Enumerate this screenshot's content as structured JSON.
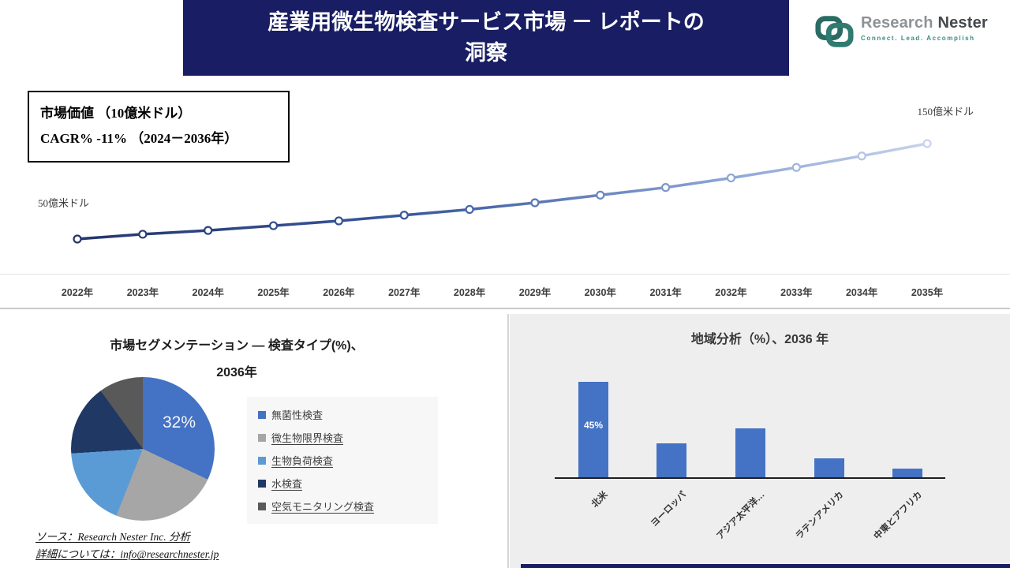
{
  "banner": {
    "line1": "産業用微生物検査サービス市場 － レポートの",
    "line2": "洞察"
  },
  "logo": {
    "name_part1": "Research",
    "name_part2": "Nester",
    "tagline": "Connect. Lead. Accomplish"
  },
  "chart_data": [
    {
      "type": "line",
      "title": "市場価値 （10億米ドル）",
      "subtitle": "CAGR% -11% （2024－2036年）",
      "min_annotation": "50億米ドル",
      "max_annotation": "150億米ドル",
      "x": [
        "2022年",
        "2023年",
        "2024年",
        "2025年",
        "2026年",
        "2027年",
        "2028年",
        "2029年",
        "2030年",
        "2031年",
        "2032年",
        "2033年",
        "2034年",
        "2035年"
      ],
      "values": [
        50,
        55,
        59,
        64,
        69,
        75,
        81,
        88,
        96,
        104,
        114,
        125,
        137,
        150
      ],
      "ylim": [
        40,
        160
      ],
      "line_colors": [
        "#24356e",
        "#3a5a9e",
        "#8fa8d8",
        "#c9d3ec"
      ]
    },
    {
      "type": "pie",
      "title_line1": "市場セグメンテーション ― 検査タイプ(%)、",
      "title_line2": "2036年",
      "labels": [
        "無菌性検査",
        "微生物限界検査",
        "生物負荷検査",
        "水検査",
        "空気モニタリング検査"
      ],
      "values": [
        32,
        24,
        18,
        16,
        10
      ],
      "colors": [
        "#4472c4",
        "#a6a6a6",
        "#5b9bd5",
        "#203864",
        "#595959"
      ],
      "data_label": "32%"
    },
    {
      "type": "bar",
      "title": "地域分析（%）、2036 年",
      "categories": [
        "北米",
        "ヨーロッパ",
        "アジア太平洋…",
        "ラテンアメリカ",
        "中東とアフリカ"
      ],
      "values": [
        45,
        16,
        23,
        9,
        4
      ],
      "bar_color": "#4472c4",
      "data_label": "45%",
      "ylim": [
        0,
        50
      ]
    }
  ],
  "source": {
    "line1": "ソース：Research Nester Inc. 分析",
    "line2": "詳細については：info@researchnester.jp"
  }
}
